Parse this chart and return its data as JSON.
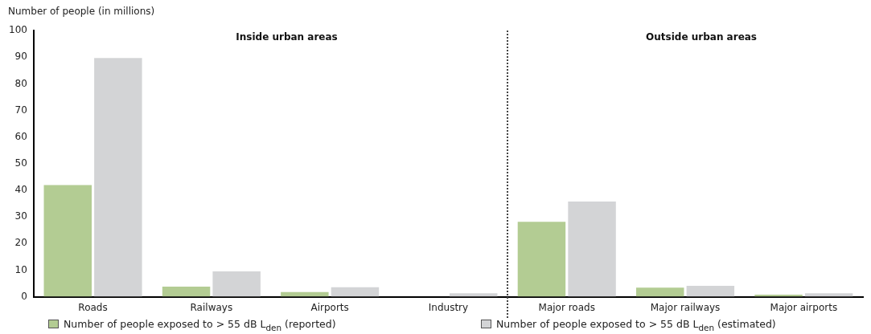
{
  "chart_data": {
    "type": "bar",
    "ylabel": "Number of people (in millions)",
    "categories": [
      "Roads",
      "Railways",
      "Airports",
      "Industry",
      "Major roads",
      "Major railways",
      "Major airports"
    ],
    "series": [
      {
        "name": "Number of people exposed to > 55 dB L$_{den}$ (reported)",
        "color": "#b3cc93",
        "values": [
          42,
          3.8,
          1.8,
          0,
          28.2,
          3.4,
          0.8
        ]
      },
      {
        "name": "Number of people exposed to  > 55 dB L$_{den}$ (estimated)",
        "color": "#d3d4d6",
        "values": [
          89.7,
          9.5,
          3.6,
          1.3,
          35.8,
          4.1,
          1.3
        ]
      }
    ],
    "ylim": [
      0,
      100
    ],
    "yticks": [
      0,
      10,
      20,
      30,
      40,
      50,
      60,
      70,
      80,
      90,
      100
    ],
    "grid": false,
    "legend": "bottom",
    "annotations": [
      "Inside urban areas",
      "Outside urban areas"
    ]
  }
}
